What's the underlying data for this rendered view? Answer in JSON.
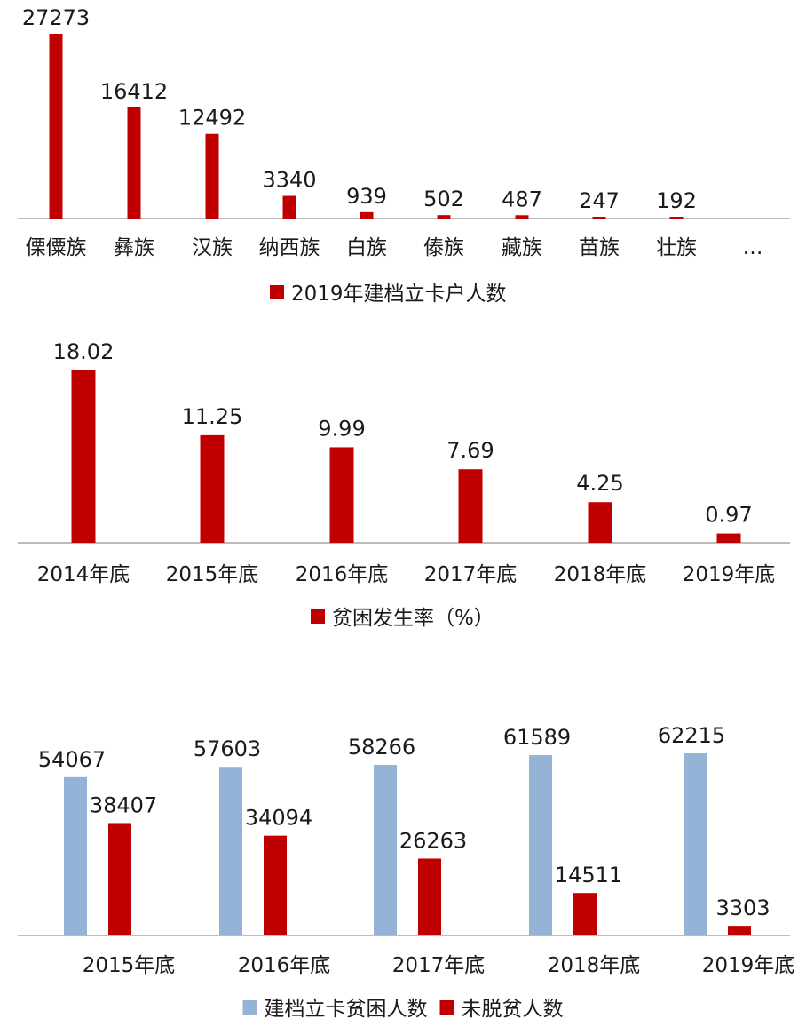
{
  "colors": {
    "red": "#c00000",
    "blue": "#95b3d7",
    "axis": "#a6a6a6"
  },
  "chart_data": [
    {
      "type": "bar",
      "categories": [
        "傈僳族",
        "彝族",
        "汉族",
        "纳西族",
        "白族",
        "傣族",
        "藏族",
        "苗族",
        "壮族",
        "…"
      ],
      "series": [
        {
          "name": "2019年建档立卡户人数",
          "values": [
            27273,
            16412,
            12492,
            3340,
            939,
            502,
            487,
            247,
            192,
            null
          ]
        }
      ],
      "ylim": [
        0,
        27273
      ],
      "legend": "bottom",
      "grid": false
    },
    {
      "type": "bar",
      "categories": [
        "2014年底",
        "2015年底",
        "2016年底",
        "2017年底",
        "2018年底",
        "2019年底"
      ],
      "series": [
        {
          "name": "贫困发生率（%）",
          "values": [
            18.02,
            11.25,
            9.99,
            7.69,
            4.25,
            0.97
          ]
        }
      ],
      "ylim": [
        0,
        18.02
      ],
      "legend": "bottom",
      "grid": false
    },
    {
      "type": "bar",
      "categories": [
        "2015年底",
        "2016年底",
        "2017年底",
        "2018年底",
        "2019年底"
      ],
      "series": [
        {
          "name": "建档立卡贫困人数",
          "values": [
            54067,
            57603,
            58266,
            61589,
            62215
          ]
        },
        {
          "name": "未脱贫人数",
          "values": [
            38407,
            34094,
            26263,
            14511,
            3303
          ]
        }
      ],
      "ylim": [
        0,
        62215
      ],
      "legend": "bottom",
      "grid": false
    }
  ]
}
